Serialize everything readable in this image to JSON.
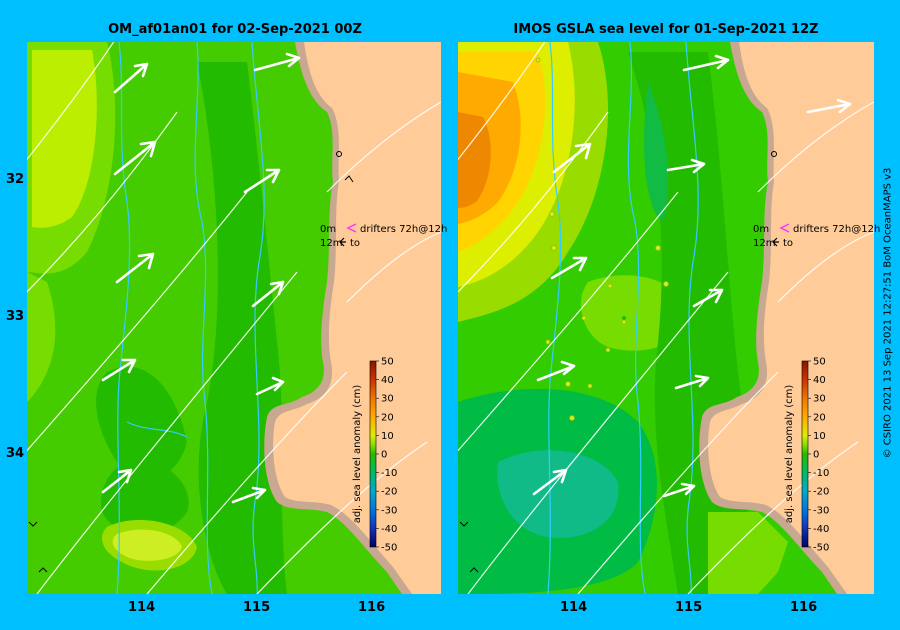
{
  "panels": [
    {
      "title": "OM_af01an01 for 02-Sep-2021 00Z"
    },
    {
      "title": "IMOS GSLA sea level  for 01-Sep-2021 12Z"
    }
  ],
  "legend": {
    "line1_depth": "0m",
    "line1_text": "drifters 72h@12h",
    "line2_depth": "12m",
    "line2_text": "to"
  },
  "colorbar": {
    "label": "adj. sea level anomaly (cm)",
    "ticks": [
      "50",
      "40",
      "30",
      "20",
      "10",
      "0",
      "-10",
      "-20",
      "-30",
      "-40",
      "-50"
    ]
  },
  "axes": {
    "y_ticks": [
      "32",
      "33",
      "34"
    ],
    "x_ticks": [
      "114",
      "115",
      "116"
    ]
  },
  "credit": "© CSIRO 2021   13 Sep 2021 12:27:51 BoM OceanMAPS v3",
  "colors": {
    "background": "#00BFFF",
    "land": "#FFCC99",
    "coast_shelf": "#C8A890",
    "river": "#33CCFF",
    "arrow": "#FFFFFF",
    "drifter_marker": "#FF33FF"
  }
}
